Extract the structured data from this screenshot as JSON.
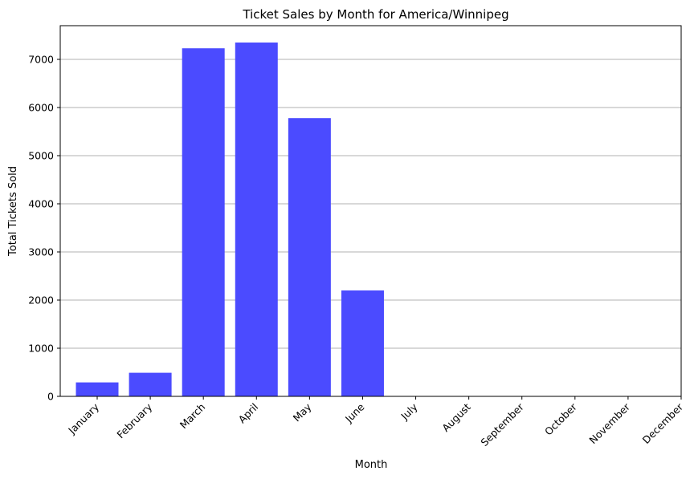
{
  "chart_data": {
    "type": "bar",
    "title": "Ticket Sales by Month for America/Winnipeg",
    "xlabel": "Month",
    "ylabel": "Total Tickets Sold",
    "categories": [
      "January",
      "February",
      "March",
      "April",
      "May",
      "June",
      "July",
      "August",
      "September",
      "October",
      "November",
      "December"
    ],
    "values": [
      290,
      490,
      7230,
      7350,
      5780,
      2200,
      0,
      0,
      0,
      0,
      0,
      0
    ],
    "ylim": [
      0,
      7700
    ],
    "yticks": [
      0,
      1000,
      2000,
      3000,
      4000,
      5000,
      6000,
      7000
    ],
    "grid": "y",
    "bar_color": "#4b4bff"
  }
}
